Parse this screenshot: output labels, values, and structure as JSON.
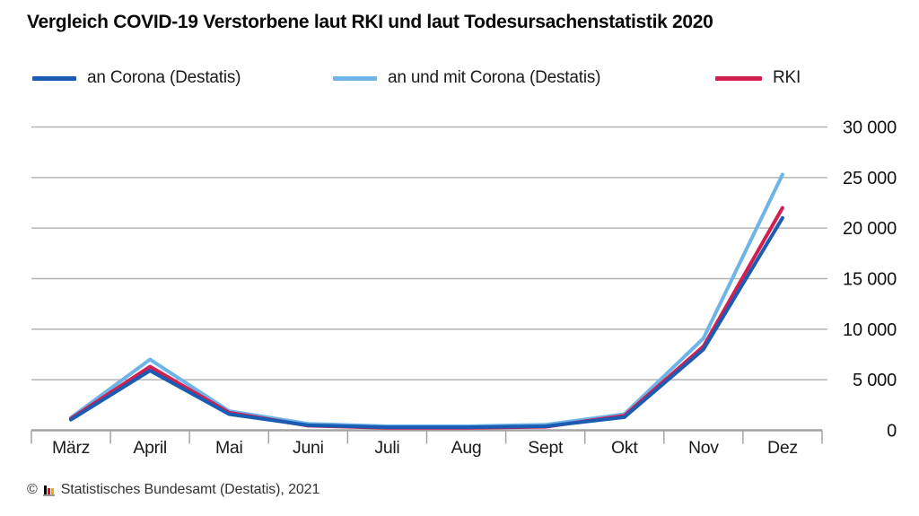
{
  "title": "Vergleich COVID-19 Verstorbene laut RKI und laut Todesursachenstatistik 2020",
  "legend": {
    "items": [
      {
        "label": "an Corona (Destatis)",
        "color": "#1b5cb3"
      },
      {
        "label": "an und mit Corona (Destatis)",
        "color": "#6db4e8"
      },
      {
        "label": "RKI",
        "color": "#d21e50"
      }
    ]
  },
  "chart_data": {
    "type": "line",
    "title": "Vergleich COVID-19 Verstorbene laut RKI und laut Todesursachenstatistik 2020",
    "categories": [
      "März",
      "April",
      "Mai",
      "Juni",
      "Juli",
      "Aug",
      "Sept",
      "Okt",
      "Nov",
      "Dez"
    ],
    "series": [
      {
        "name": "an Corona (Destatis)",
        "color": "#1b5cb3",
        "values": [
          1050,
          5900,
          1600,
          500,
          300,
          300,
          400,
          1300,
          8000,
          21000
        ]
      },
      {
        "name": "an und mit Corona (Destatis)",
        "color": "#6db4e8",
        "values": [
          1250,
          7000,
          1900,
          650,
          400,
          400,
          550,
          1600,
          9100,
          25300
        ]
      },
      {
        "name": "RKI",
        "color": "#d21e50",
        "values": [
          1150,
          6300,
          1750,
          450,
          250,
          250,
          350,
          1450,
          8300,
          22000
        ]
      }
    ],
    "xlabel": "",
    "ylabel": "",
    "ylim": [
      0,
      30000
    ],
    "yticks": [
      {
        "value": 0,
        "label": "0"
      },
      {
        "value": 5000,
        "label": "5 000"
      },
      {
        "value": 10000,
        "label": "10 000"
      },
      {
        "value": 15000,
        "label": "15 000"
      },
      {
        "value": 20000,
        "label": "20 000"
      },
      {
        "value": 25000,
        "label": "25 000"
      },
      {
        "value": 30000,
        "label": "30 000"
      }
    ],
    "grid": "horizontal",
    "legend_position": "top"
  },
  "footer": {
    "copyright": "©",
    "source": "Statistisches Bundesamt (Destatis), 2021"
  },
  "colors": {
    "grid": "#b4b4b4",
    "axis": "#a3a3a3",
    "text": "#1a1a1a"
  }
}
